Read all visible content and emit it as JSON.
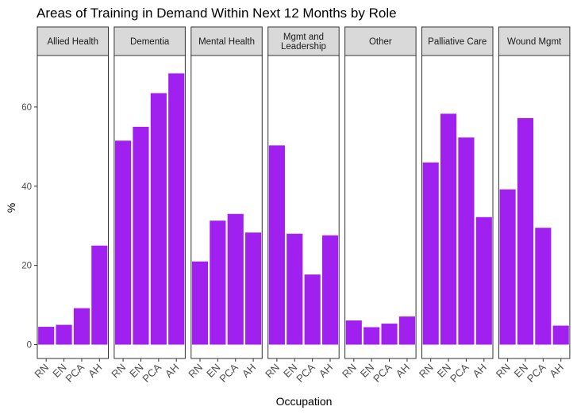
{
  "chart_data": {
    "type": "bar",
    "title": "Areas of Training in Demand Within Next 12 Months by Role",
    "xlabel": "Occupation",
    "ylabel": "%",
    "categories": [
      "RN",
      "EN",
      "PCA",
      "AH"
    ],
    "ylim": [
      -3.5,
      73
    ],
    "yticks": [
      0,
      20,
      40,
      60
    ],
    "bar_color": "#a020f0",
    "panels": [
      {
        "label": [
          "Allied Health"
        ],
        "values": [
          4.5,
          5.0,
          9.2,
          25.0
        ]
      },
      {
        "label": [
          "Dementia"
        ],
        "values": [
          51.5,
          55.0,
          63.5,
          68.5
        ]
      },
      {
        "label": [
          "Mental Health"
        ],
        "values": [
          21.0,
          31.3,
          33.0,
          28.3
        ]
      },
      {
        "label": [
          "Mgmt and",
          "Leadership"
        ],
        "values": [
          50.3,
          28.0,
          17.7,
          27.6
        ]
      },
      {
        "label": [
          "Other"
        ],
        "values": [
          6.1,
          4.4,
          5.3,
          7.1
        ]
      },
      {
        "label": [
          "Palliative Care"
        ],
        "values": [
          46.0,
          58.3,
          52.3,
          32.2
        ]
      },
      {
        "label": [
          "Wound Mgmt"
        ],
        "values": [
          39.2,
          57.2,
          29.5,
          4.8
        ]
      }
    ]
  }
}
